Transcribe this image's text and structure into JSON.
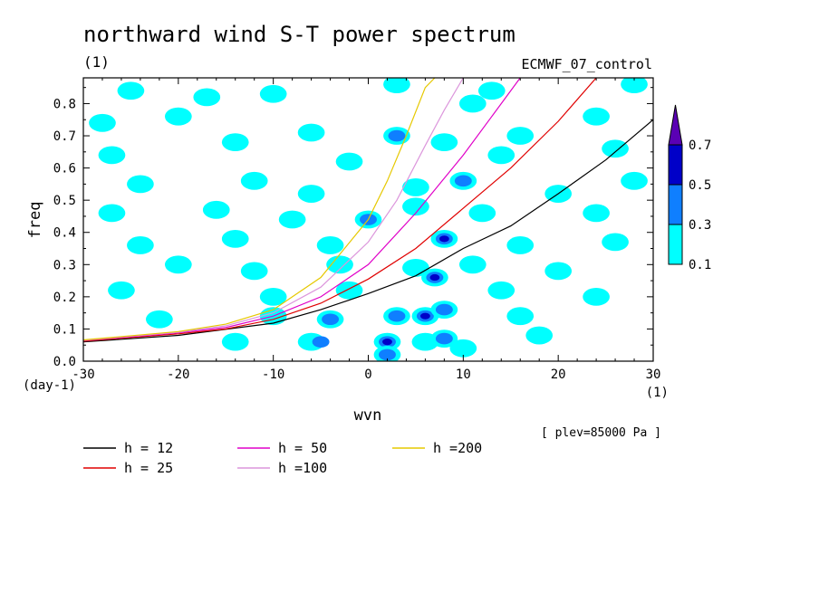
{
  "chart_data": {
    "type": "heatmap",
    "title": "northward wind S-T power spectrum",
    "subtitle_left": "(1)",
    "subtitle_right": "ECMWF_07_control",
    "xlabel": "wvn",
    "ylabel": "freq",
    "x_unit": "(1)",
    "y_unit": "(day-1)",
    "xlim": [
      -30,
      30
    ],
    "ylim": [
      0,
      0.88
    ],
    "xticks": [
      -30,
      -20,
      -10,
      0,
      10,
      20,
      30
    ],
    "xtick_labels": [
      "-30",
      "-20",
      "-10",
      "0",
      "10",
      "20",
      "30"
    ],
    "yticks": [
      0,
      0.1,
      0.2,
      0.3,
      0.4,
      0.5,
      0.6,
      0.7,
      0.8
    ],
    "ytick_labels": [
      "0.0",
      "0.1",
      "0.2",
      "0.3",
      "0.4",
      "0.5",
      "0.6",
      "0.7",
      "0.8"
    ],
    "level_note": "[ plev=85000 Pa ]",
    "colorbar": {
      "levels": [
        "0.1",
        "0.3",
        "0.5",
        "0.7"
      ],
      "colors": [
        "#00ffff",
        "#0f7fff",
        "#0000c8",
        "#5a00b4"
      ]
    },
    "contour_cells": [
      {
        "x": -25,
        "y": 0.84,
        "level": 1
      },
      {
        "x": -17,
        "y": 0.82,
        "level": 1
      },
      {
        "x": -10,
        "y": 0.83,
        "level": 1
      },
      {
        "x": 3,
        "y": 0.86,
        "level": 1
      },
      {
        "x": 13,
        "y": 0.84,
        "level": 1
      },
      {
        "x": 28,
        "y": 0.86,
        "level": 1
      },
      {
        "x": -28,
        "y": 0.74,
        "level": 1
      },
      {
        "x": -20,
        "y": 0.76,
        "level": 1
      },
      {
        "x": -6,
        "y": 0.71,
        "level": 1
      },
      {
        "x": 3,
        "y": 0.7,
        "level": 1
      },
      {
        "x": 3,
        "y": 0.7,
        "level": 2
      },
      {
        "x": 11,
        "y": 0.8,
        "level": 1
      },
      {
        "x": 16,
        "y": 0.7,
        "level": 1
      },
      {
        "x": 24,
        "y": 0.76,
        "level": 1
      },
      {
        "x": -27,
        "y": 0.64,
        "level": 1
      },
      {
        "x": -14,
        "y": 0.68,
        "level": 1
      },
      {
        "x": -2,
        "y": 0.62,
        "level": 1
      },
      {
        "x": 8,
        "y": 0.68,
        "level": 1
      },
      {
        "x": 14,
        "y": 0.64,
        "level": 1
      },
      {
        "x": 26,
        "y": 0.66,
        "level": 1
      },
      {
        "x": -24,
        "y": 0.55,
        "level": 1
      },
      {
        "x": -12,
        "y": 0.56,
        "level": 1
      },
      {
        "x": -6,
        "y": 0.52,
        "level": 1
      },
      {
        "x": 5,
        "y": 0.54,
        "level": 1
      },
      {
        "x": 10,
        "y": 0.56,
        "level": 1
      },
      {
        "x": 10,
        "y": 0.56,
        "level": 2
      },
      {
        "x": 20,
        "y": 0.52,
        "level": 1
      },
      {
        "x": 28,
        "y": 0.56,
        "level": 1
      },
      {
        "x": -27,
        "y": 0.46,
        "level": 1
      },
      {
        "x": -16,
        "y": 0.47,
        "level": 1
      },
      {
        "x": -8,
        "y": 0.44,
        "level": 1
      },
      {
        "x": 0,
        "y": 0.44,
        "level": 1
      },
      {
        "x": 0,
        "y": 0.44,
        "level": 2
      },
      {
        "x": 5,
        "y": 0.48,
        "level": 1
      },
      {
        "x": 12,
        "y": 0.46,
        "level": 1
      },
      {
        "x": 24,
        "y": 0.46,
        "level": 1
      },
      {
        "x": -24,
        "y": 0.36,
        "level": 1
      },
      {
        "x": -14,
        "y": 0.38,
        "level": 1
      },
      {
        "x": -4,
        "y": 0.36,
        "level": 1
      },
      {
        "x": 8,
        "y": 0.38,
        "level": 1
      },
      {
        "x": 8,
        "y": 0.38,
        "level": 2
      },
      {
        "x": 8,
        "y": 0.38,
        "level": 3
      },
      {
        "x": 16,
        "y": 0.36,
        "level": 1
      },
      {
        "x": 26,
        "y": 0.37,
        "level": 1
      },
      {
        "x": -20,
        "y": 0.3,
        "level": 1
      },
      {
        "x": -12,
        "y": 0.28,
        "level": 1
      },
      {
        "x": -3,
        "y": 0.3,
        "level": 1
      },
      {
        "x": 5,
        "y": 0.29,
        "level": 1
      },
      {
        "x": 11,
        "y": 0.3,
        "level": 1
      },
      {
        "x": 20,
        "y": 0.28,
        "level": 1
      },
      {
        "x": -26,
        "y": 0.22,
        "level": 1
      },
      {
        "x": -10,
        "y": 0.2,
        "level": 1
      },
      {
        "x": -2,
        "y": 0.22,
        "level": 1
      },
      {
        "x": 7,
        "y": 0.26,
        "level": 1
      },
      {
        "x": 7,
        "y": 0.26,
        "level": 2
      },
      {
        "x": 7,
        "y": 0.26,
        "level": 3
      },
      {
        "x": 14,
        "y": 0.22,
        "level": 1
      },
      {
        "x": 24,
        "y": 0.2,
        "level": 1
      },
      {
        "x": -22,
        "y": 0.13,
        "level": 1
      },
      {
        "x": -10,
        "y": 0.14,
        "level": 1
      },
      {
        "x": -4,
        "y": 0.13,
        "level": 1
      },
      {
        "x": -4,
        "y": 0.13,
        "level": 2
      },
      {
        "x": 3,
        "y": 0.14,
        "level": 1
      },
      {
        "x": 3,
        "y": 0.14,
        "level": 2
      },
      {
        "x": 6,
        "y": 0.14,
        "level": 1
      },
      {
        "x": 6,
        "y": 0.14,
        "level": 2
      },
      {
        "x": 6,
        "y": 0.14,
        "level": 3
      },
      {
        "x": 8,
        "y": 0.16,
        "level": 1
      },
      {
        "x": 8,
        "y": 0.16,
        "level": 2
      },
      {
        "x": 16,
        "y": 0.14,
        "level": 1
      },
      {
        "x": -6,
        "y": 0.06,
        "level": 1
      },
      {
        "x": -5,
        "y": 0.06,
        "level": 2
      },
      {
        "x": 2,
        "y": 0.06,
        "level": 1
      },
      {
        "x": 2,
        "y": 0.06,
        "level": 2
      },
      {
        "x": 2,
        "y": 0.06,
        "level": 3
      },
      {
        "x": 6,
        "y": 0.06,
        "level": 1
      },
      {
        "x": 8,
        "y": 0.07,
        "level": 1
      },
      {
        "x": 8,
        "y": 0.07,
        "level": 2
      },
      {
        "x": 2,
        "y": 0.02,
        "level": 1
      },
      {
        "x": 2,
        "y": 0.02,
        "level": 2
      },
      {
        "x": 10,
        "y": 0.04,
        "level": 1
      },
      {
        "x": -14,
        "y": 0.06,
        "level": 1
      },
      {
        "x": 18,
        "y": 0.08,
        "level": 1
      }
    ],
    "dispersion_curves": [
      {
        "name": "h = 12",
        "color": "#000000",
        "points": [
          [
            -30,
            0.06
          ],
          [
            -20,
            0.08
          ],
          [
            -10,
            0.118
          ],
          [
            -5,
            0.16
          ],
          [
            0,
            0.21
          ],
          [
            5,
            0.265
          ],
          [
            10,
            0.35
          ],
          [
            15,
            0.42
          ],
          [
            20,
            0.52
          ],
          [
            25,
            0.625
          ],
          [
            30,
            0.75
          ]
        ]
      },
      {
        "name": "h = 25",
        "color": "#e00000",
        "points": [
          [
            -30,
            0.062
          ],
          [
            -20,
            0.085
          ],
          [
            -15,
            0.1
          ],
          [
            -10,
            0.13
          ],
          [
            -5,
            0.18
          ],
          [
            0,
            0.255
          ],
          [
            5,
            0.35
          ],
          [
            10,
            0.475
          ],
          [
            15,
            0.6
          ],
          [
            20,
            0.745
          ],
          [
            24,
            0.88
          ]
        ]
      },
      {
        "name": "h = 50",
        "color": "#e000c8",
        "points": [
          [
            -30,
            0.064
          ],
          [
            -20,
            0.088
          ],
          [
            -15,
            0.105
          ],
          [
            -10,
            0.14
          ],
          [
            -5,
            0.2
          ],
          [
            0,
            0.3
          ],
          [
            5,
            0.46
          ],
          [
            10,
            0.64
          ],
          [
            13,
            0.76
          ],
          [
            16,
            0.88
          ]
        ]
      },
      {
        "name": "h =100",
        "color": "#dc96dc",
        "points": [
          [
            -30,
            0.065
          ],
          [
            -20,
            0.09
          ],
          [
            -15,
            0.11
          ],
          [
            -10,
            0.15
          ],
          [
            -5,
            0.23
          ],
          [
            0,
            0.37
          ],
          [
            3,
            0.5
          ],
          [
            6,
            0.67
          ],
          [
            8,
            0.78
          ],
          [
            10,
            0.88
          ]
        ]
      },
      {
        "name": "h =200",
        "color": "#e6c800",
        "points": [
          [
            -30,
            0.066
          ],
          [
            -20,
            0.092
          ],
          [
            -15,
            0.115
          ],
          [
            -10,
            0.16
          ],
          [
            -5,
            0.26
          ],
          [
            0,
            0.44
          ],
          [
            2,
            0.56
          ],
          [
            4,
            0.7
          ],
          [
            6,
            0.85
          ],
          [
            7,
            0.88
          ]
        ]
      }
    ]
  }
}
